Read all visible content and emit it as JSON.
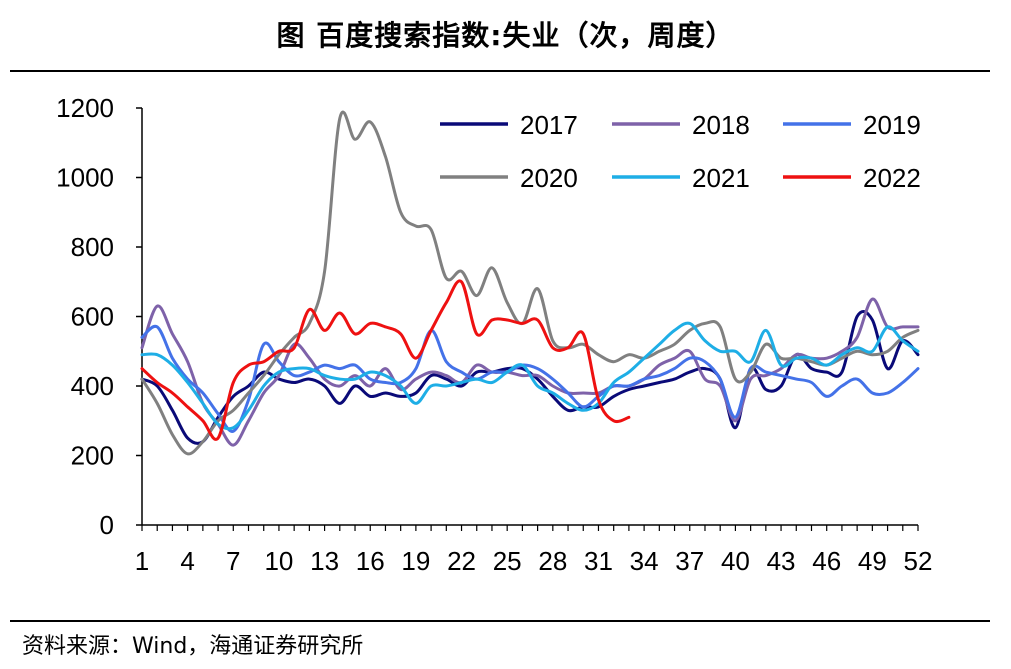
{
  "header": {
    "title": "图  百度搜索指数:失业（次，周度）"
  },
  "footer": {
    "source": "资料来源：Wind，海通证券研究所"
  },
  "chart_data": {
    "type": "line",
    "title": "图  百度搜索指数:失业（次，周度）",
    "xlabel": "",
    "ylabel": "",
    "ylim": [
      0,
      1200
    ],
    "xlim": [
      1,
      52
    ],
    "yticks": [
      0,
      200,
      400,
      600,
      800,
      1000,
      1200
    ],
    "xticks": [
      1,
      4,
      7,
      10,
      13,
      16,
      19,
      22,
      25,
      28,
      31,
      34,
      37,
      40,
      43,
      46,
      49,
      52
    ],
    "grid": false,
    "legend_position": "top-right",
    "series": [
      {
        "name": "2017",
        "color": "#0a0a78",
        "points": [
          [
            1,
            420
          ],
          [
            2,
            400
          ],
          [
            3,
            330
          ],
          [
            4,
            250
          ],
          [
            5,
            240
          ],
          [
            6,
            310
          ],
          [
            7,
            370
          ],
          [
            8,
            400
          ],
          [
            9,
            440
          ],
          [
            10,
            420
          ],
          [
            11,
            410
          ],
          [
            12,
            420
          ],
          [
            13,
            400
          ],
          [
            14,
            350
          ],
          [
            15,
            400
          ],
          [
            16,
            370
          ],
          [
            17,
            380
          ],
          [
            18,
            370
          ],
          [
            19,
            380
          ],
          [
            20,
            430
          ],
          [
            21,
            420
          ],
          [
            22,
            400
          ],
          [
            23,
            440
          ],
          [
            24,
            440
          ],
          [
            25,
            450
          ],
          [
            26,
            450
          ],
          [
            27,
            420
          ],
          [
            28,
            370
          ],
          [
            29,
            330
          ],
          [
            30,
            340
          ],
          [
            31,
            340
          ],
          [
            32,
            370
          ],
          [
            33,
            390
          ],
          [
            34,
            400
          ],
          [
            35,
            410
          ],
          [
            36,
            420
          ],
          [
            37,
            440
          ],
          [
            38,
            450
          ],
          [
            39,
            420
          ],
          [
            40,
            280
          ],
          [
            41,
            450
          ],
          [
            42,
            390
          ],
          [
            43,
            400
          ],
          [
            44,
            490
          ],
          [
            45,
            450
          ],
          [
            46,
            440
          ],
          [
            47,
            440
          ],
          [
            48,
            600
          ],
          [
            49,
            590
          ],
          [
            50,
            450
          ],
          [
            51,
            530
          ],
          [
            52,
            490
          ]
        ]
      },
      {
        "name": "2018",
        "color": "#7e62a9",
        "points": [
          [
            1,
            510
          ],
          [
            2,
            630
          ],
          [
            3,
            550
          ],
          [
            4,
            470
          ],
          [
            5,
            350
          ],
          [
            6,
            290
          ],
          [
            7,
            230
          ],
          [
            8,
            300
          ],
          [
            9,
            380
          ],
          [
            10,
            430
          ],
          [
            11,
            520
          ],
          [
            12,
            480
          ],
          [
            13,
            420
          ],
          [
            14,
            400
          ],
          [
            15,
            430
          ],
          [
            16,
            400
          ],
          [
            17,
            450
          ],
          [
            18,
            390
          ],
          [
            19,
            420
          ],
          [
            20,
            440
          ],
          [
            21,
            430
          ],
          [
            22,
            410
          ],
          [
            23,
            460
          ],
          [
            24,
            440
          ],
          [
            25,
            440
          ],
          [
            26,
            430
          ],
          [
            27,
            430
          ],
          [
            28,
            400
          ],
          [
            29,
            380
          ],
          [
            30,
            380
          ],
          [
            31,
            380
          ],
          [
            32,
            400
          ],
          [
            33,
            400
          ],
          [
            34,
            420
          ],
          [
            35,
            460
          ],
          [
            36,
            480
          ],
          [
            37,
            500
          ],
          [
            38,
            420
          ],
          [
            39,
            400
          ],
          [
            40,
            300
          ],
          [
            41,
            420
          ],
          [
            42,
            430
          ],
          [
            43,
            450
          ],
          [
            44,
            490
          ],
          [
            45,
            480
          ],
          [
            46,
            480
          ],
          [
            47,
            500
          ],
          [
            48,
            540
          ],
          [
            49,
            650
          ],
          [
            50,
            570
          ],
          [
            51,
            570
          ],
          [
            52,
            570
          ]
        ]
      },
      {
        "name": "2019",
        "color": "#4472e8",
        "points": [
          [
            1,
            540
          ],
          [
            2,
            570
          ],
          [
            3,
            480
          ],
          [
            4,
            420
          ],
          [
            5,
            380
          ],
          [
            6,
            320
          ],
          [
            7,
            270
          ],
          [
            8,
            360
          ],
          [
            9,
            520
          ],
          [
            10,
            470
          ],
          [
            11,
            430
          ],
          [
            12,
            440
          ],
          [
            13,
            460
          ],
          [
            14,
            450
          ],
          [
            15,
            460
          ],
          [
            16,
            420
          ],
          [
            17,
            410
          ],
          [
            18,
            410
          ],
          [
            19,
            450
          ],
          [
            20,
            560
          ],
          [
            21,
            470
          ],
          [
            22,
            440
          ],
          [
            23,
            420
          ],
          [
            24,
            440
          ],
          [
            25,
            440
          ],
          [
            26,
            460
          ],
          [
            27,
            450
          ],
          [
            28,
            420
          ],
          [
            29,
            380
          ],
          [
            30,
            340
          ],
          [
            31,
            370
          ],
          [
            32,
            400
          ],
          [
            33,
            400
          ],
          [
            34,
            420
          ],
          [
            35,
            430
          ],
          [
            36,
            450
          ],
          [
            37,
            480
          ],
          [
            38,
            470
          ],
          [
            39,
            420
          ],
          [
            40,
            310
          ],
          [
            41,
            450
          ],
          [
            42,
            440
          ],
          [
            43,
            430
          ],
          [
            44,
            420
          ],
          [
            45,
            410
          ],
          [
            46,
            370
          ],
          [
            47,
            400
          ],
          [
            48,
            420
          ],
          [
            49,
            380
          ],
          [
            50,
            380
          ],
          [
            51,
            410
          ],
          [
            52,
            450
          ]
        ]
      },
      {
        "name": "2020",
        "color": "#808080",
        "points": [
          [
            1,
            420
          ],
          [
            2,
            350
          ],
          [
            3,
            260
          ],
          [
            4,
            205
          ],
          [
            5,
            240
          ],
          [
            6,
            300
          ],
          [
            7,
            330
          ],
          [
            8,
            380
          ],
          [
            9,
            430
          ],
          [
            10,
            490
          ],
          [
            11,
            540
          ],
          [
            12,
            580
          ],
          [
            13,
            730
          ],
          [
            14,
            1170
          ],
          [
            15,
            1110
          ],
          [
            16,
            1160
          ],
          [
            17,
            1060
          ],
          [
            18,
            900
          ],
          [
            19,
            860
          ],
          [
            20,
            850
          ],
          [
            21,
            710
          ],
          [
            22,
            730
          ],
          [
            23,
            660
          ],
          [
            24,
            740
          ],
          [
            25,
            640
          ],
          [
            26,
            580
          ],
          [
            27,
            680
          ],
          [
            28,
            530
          ],
          [
            29,
            510
          ],
          [
            30,
            520
          ],
          [
            31,
            490
          ],
          [
            32,
            470
          ],
          [
            33,
            490
          ],
          [
            34,
            480
          ],
          [
            35,
            500
          ],
          [
            36,
            520
          ],
          [
            37,
            560
          ],
          [
            38,
            580
          ],
          [
            39,
            570
          ],
          [
            40,
            420
          ],
          [
            41,
            440
          ],
          [
            42,
            520
          ],
          [
            43,
            480
          ],
          [
            44,
            480
          ],
          [
            45,
            470
          ],
          [
            46,
            460
          ],
          [
            47,
            480
          ],
          [
            48,
            500
          ],
          [
            49,
            490
          ],
          [
            50,
            500
          ],
          [
            51,
            540
          ],
          [
            52,
            560
          ]
        ]
      },
      {
        "name": "2021",
        "color": "#1eaee6",
        "points": [
          [
            1,
            490
          ],
          [
            2,
            490
          ],
          [
            3,
            460
          ],
          [
            4,
            410
          ],
          [
            5,
            350
          ],
          [
            6,
            290
          ],
          [
            7,
            280
          ],
          [
            8,
            330
          ],
          [
            9,
            400
          ],
          [
            10,
            440
          ],
          [
            11,
            450
          ],
          [
            12,
            450
          ],
          [
            13,
            430
          ],
          [
            14,
            420
          ],
          [
            15,
            420
          ],
          [
            16,
            440
          ],
          [
            17,
            430
          ],
          [
            18,
            400
          ],
          [
            19,
            350
          ],
          [
            20,
            400
          ],
          [
            21,
            400
          ],
          [
            22,
            410
          ],
          [
            23,
            420
          ],
          [
            24,
            410
          ],
          [
            25,
            440
          ],
          [
            26,
            460
          ],
          [
            27,
            400
          ],
          [
            28,
            380
          ],
          [
            29,
            350
          ],
          [
            30,
            330
          ],
          [
            31,
            350
          ],
          [
            32,
            410
          ],
          [
            33,
            440
          ],
          [
            34,
            480
          ],
          [
            35,
            520
          ],
          [
            36,
            560
          ],
          [
            37,
            580
          ],
          [
            38,
            530
          ],
          [
            39,
            500
          ],
          [
            40,
            500
          ],
          [
            41,
            470
          ],
          [
            42,
            560
          ],
          [
            43,
            460
          ],
          [
            44,
            480
          ],
          [
            45,
            480
          ],
          [
            46,
            460
          ],
          [
            47,
            490
          ],
          [
            48,
            510
          ],
          [
            49,
            500
          ],
          [
            50,
            570
          ],
          [
            51,
            530
          ],
          [
            52,
            500
          ]
        ]
      },
      {
        "name": "2022",
        "color": "#ee1111",
        "points": [
          [
            1,
            450
          ],
          [
            2,
            410
          ],
          [
            3,
            380
          ],
          [
            4,
            340
          ],
          [
            5,
            300
          ],
          [
            6,
            250
          ],
          [
            7,
            410
          ],
          [
            8,
            460
          ],
          [
            9,
            470
          ],
          [
            10,
            500
          ],
          [
            11,
            510
          ],
          [
            12,
            620
          ],
          [
            13,
            560
          ],
          [
            14,
            610
          ],
          [
            15,
            550
          ],
          [
            16,
            580
          ],
          [
            17,
            570
          ],
          [
            18,
            550
          ],
          [
            19,
            480
          ],
          [
            20,
            560
          ],
          [
            21,
            640
          ],
          [
            22,
            700
          ],
          [
            23,
            550
          ],
          [
            24,
            590
          ],
          [
            25,
            590
          ],
          [
            26,
            580
          ],
          [
            27,
            590
          ],
          [
            28,
            510
          ],
          [
            29,
            510
          ],
          [
            30,
            550
          ],
          [
            31,
            360
          ],
          [
            32,
            300
          ],
          [
            33,
            310
          ]
        ]
      }
    ]
  }
}
